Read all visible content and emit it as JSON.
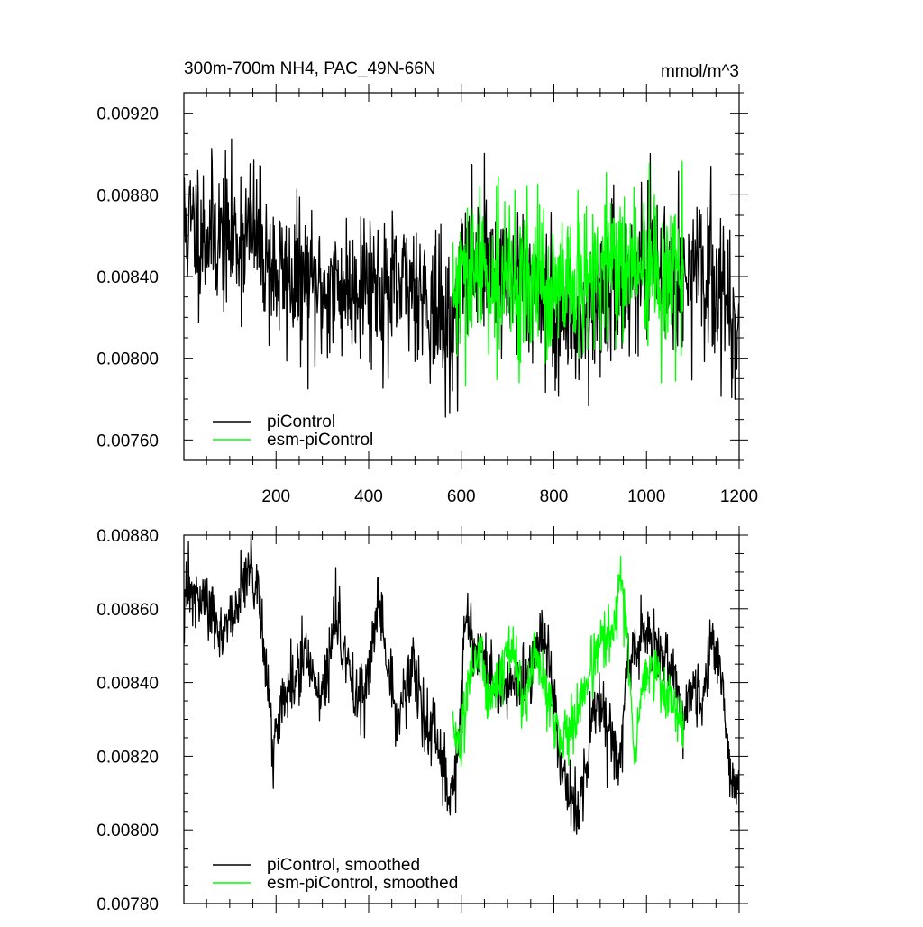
{
  "chart_data": [
    {
      "type": "line",
      "title": "300m-700m NH4, PAC_49N-66N",
      "units": "mmol/m^3",
      "xlim": [
        1,
        1200
      ],
      "ylim": [
        0.0075,
        0.0093
      ],
      "x_ticks": [
        200,
        400,
        600,
        800,
        1000,
        1200
      ],
      "x_tick_labels": [
        "200",
        "400",
        "600",
        "800",
        "1000",
        "1200"
      ],
      "y_ticks": [
        0.0076,
        0.008,
        0.0084,
        0.0088,
        0.0092
      ],
      "y_tick_labels": [
        "0.00760",
        "0.00800",
        "0.00840",
        "0.00880",
        "0.00920"
      ],
      "legend": {
        "position": "bottom-left",
        "entries": [
          "piControl",
          "esm-piControl"
        ]
      },
      "series": [
        {
          "name": "piControl",
          "color": "#000000",
          "x_range": [
            1,
            1200
          ],
          "anchors": [
            [
              1,
              0.00865
            ],
            [
              50,
              0.00862
            ],
            [
              100,
              0.00858
            ],
            [
              150,
              0.00862
            ],
            [
              200,
              0.0084
            ],
            [
              250,
              0.00838
            ],
            [
              300,
              0.00832
            ],
            [
              350,
              0.00835
            ],
            [
              400,
              0.0084
            ],
            [
              450,
              0.0083
            ],
            [
              500,
              0.00838
            ],
            [
              550,
              0.00822
            ],
            [
              580,
              0.00808
            ],
            [
              600,
              0.00842
            ],
            [
              650,
              0.00848
            ],
            [
              700,
              0.00838
            ],
            [
              750,
              0.0084
            ],
            [
              800,
              0.00822
            ],
            [
              850,
              0.00818
            ],
            [
              900,
              0.0083
            ],
            [
              950,
              0.00838
            ],
            [
              1000,
              0.00845
            ],
            [
              1050,
              0.00842
            ],
            [
              1100,
              0.0084
            ],
            [
              1150,
              0.00838
            ],
            [
              1200,
              0.00812
            ]
          ],
          "noise_sd": 0.00018,
          "seed": 11
        },
        {
          "name": "esm-piControl",
          "color": "#00ff00",
          "x_range": [
            582,
            1080
          ],
          "anchors": [
            [
              582,
              0.0083
            ],
            [
              620,
              0.00838
            ],
            [
              650,
              0.00843
            ],
            [
              700,
              0.00836
            ],
            [
              750,
              0.00838
            ],
            [
              800,
              0.0083
            ],
            [
              850,
              0.00832
            ],
            [
              900,
              0.00842
            ],
            [
              950,
              0.00848
            ],
            [
              1000,
              0.00842
            ],
            [
              1040,
              0.00838
            ],
            [
              1080,
              0.00835
            ]
          ],
          "noise_sd": 0.00019,
          "seed": 29
        }
      ]
    },
    {
      "type": "line",
      "xlim": [
        1,
        1200
      ],
      "ylim": [
        0.0078,
        0.0088
      ],
      "x_ticks": [
        200,
        400,
        600,
        800,
        1000,
        1200
      ],
      "y_ticks": [
        0.0078,
        0.008,
        0.0082,
        0.0084,
        0.0086,
        0.0088
      ],
      "y_tick_labels": [
        "0.00780",
        "0.00800",
        "0.00820",
        "0.00840",
        "0.00860",
        "0.00880"
      ],
      "legend": {
        "position": "bottom-left",
        "entries": [
          "piControl, smoothed",
          "esm-piControl, smoothed"
        ]
      },
      "series": [
        {
          "name": "piControl, smoothed",
          "color": "#000000",
          "x_range": [
            1,
            1200
          ],
          "anchors": [
            [
              1,
              0.00865
            ],
            [
              30,
              0.00862
            ],
            [
              60,
              0.0086
            ],
            [
              80,
              0.00852
            ],
            [
              110,
              0.00858
            ],
            [
              140,
              0.00872
            ],
            [
              160,
              0.00865
            ],
            [
              175,
              0.0085
            ],
            [
              195,
              0.0082
            ],
            [
              210,
              0.00835
            ],
            [
              240,
              0.0084
            ],
            [
              270,
              0.00848
            ],
            [
              300,
              0.00835
            ],
            [
              330,
              0.00858
            ],
            [
              350,
              0.00848
            ],
            [
              370,
              0.00835
            ],
            [
              400,
              0.00842
            ],
            [
              420,
              0.00862
            ],
            [
              440,
              0.00845
            ],
            [
              460,
              0.00828
            ],
            [
              480,
              0.0084
            ],
            [
              500,
              0.00842
            ],
            [
              520,
              0.0083
            ],
            [
              550,
              0.00822
            ],
            [
              575,
              0.00808
            ],
            [
              595,
              0.00822
            ],
            [
              610,
              0.00858
            ],
            [
              630,
              0.0085
            ],
            [
              650,
              0.00845
            ],
            [
              670,
              0.0084
            ],
            [
              700,
              0.00838
            ],
            [
              720,
              0.0084
            ],
            [
              750,
              0.00842
            ],
            [
              775,
              0.00855
            ],
            [
              795,
              0.00842
            ],
            [
              810,
              0.0082
            ],
            [
              830,
              0.0081
            ],
            [
              850,
              0.00805
            ],
            [
              870,
              0.00818
            ],
            [
              890,
              0.00835
            ],
            [
              920,
              0.00825
            ],
            [
              940,
              0.00815
            ],
            [
              960,
              0.00845
            ],
            [
              980,
              0.0085
            ],
            [
              1000,
              0.00855
            ],
            [
              1020,
              0.0085
            ],
            [
              1040,
              0.00845
            ],
            [
              1060,
              0.0084
            ],
            [
              1080,
              0.0083
            ],
            [
              1100,
              0.0084
            ],
            [
              1120,
              0.00835
            ],
            [
              1140,
              0.0085
            ],
            [
              1160,
              0.00845
            ],
            [
              1180,
              0.00815
            ],
            [
              1200,
              0.0081
            ]
          ],
          "noise_sd": 4.5e-05,
          "seed": 47
        },
        {
          "name": "esm-piControl, smoothed",
          "color": "#00ff00",
          "x_range": [
            582,
            1080
          ],
          "anchors": [
            [
              582,
              0.0083
            ],
            [
              600,
              0.0082
            ],
            [
              615,
              0.0084
            ],
            [
              640,
              0.0085
            ],
            [
              660,
              0.00835
            ],
            [
              690,
              0.00845
            ],
            [
              710,
              0.0085
            ],
            [
              740,
              0.00832
            ],
            [
              760,
              0.00848
            ],
            [
              780,
              0.0084
            ],
            [
              800,
              0.0083
            ],
            [
              820,
              0.00825
            ],
            [
              840,
              0.00828
            ],
            [
              860,
              0.00835
            ],
            [
              880,
              0.00845
            ],
            [
              900,
              0.0085
            ],
            [
              930,
              0.00855
            ],
            [
              945,
              0.00868
            ],
            [
              960,
              0.0085
            ],
            [
              975,
              0.00815
            ],
            [
              990,
              0.0084
            ],
            [
              1010,
              0.00845
            ],
            [
              1030,
              0.0084
            ],
            [
              1050,
              0.00835
            ],
            [
              1065,
              0.00832
            ],
            [
              1080,
              0.00828
            ]
          ],
          "noise_sd": 4e-05,
          "seed": 83
        }
      ]
    }
  ]
}
